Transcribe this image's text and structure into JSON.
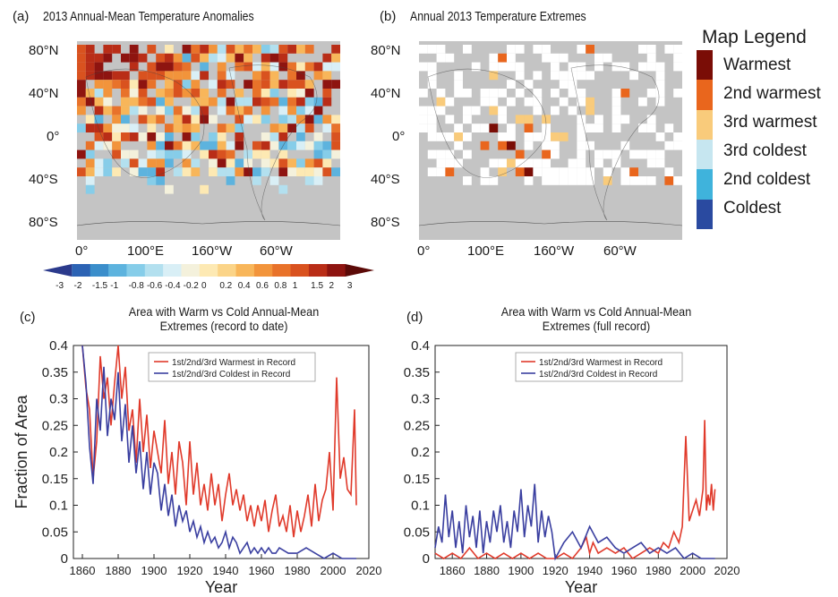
{
  "colors": {
    "land_gray": "#c4c4c4",
    "ocean_gray": "#c4c4c4",
    "warm_line": "#e03a2b",
    "cold_line": "#3a3fa0",
    "scale": [
      "#2b3a8c",
      "#2c63b4",
      "#3b8ecb",
      "#5db3de",
      "#86cde9",
      "#b3e0ef",
      "#d9eff6",
      "#f4f1dc",
      "#fde9b3",
      "#fbd488",
      "#f8b65a",
      "#f2943b",
      "#e8722a",
      "#d9521f",
      "#b92d17",
      "#8e1410",
      "#5c0a08"
    ],
    "legend": [
      "#7a0d06",
      "#e9661d",
      "#f9cb7b",
      "#c6e6f0",
      "#3fb3dc",
      "#2a4aa0"
    ]
  },
  "panel_a": {
    "tag": "(a)",
    "title": "2013 Annual-Mean Temperature Anomalies",
    "lat_labels": [
      "80°N",
      "40°N",
      "0°",
      "40°S",
      "80°S"
    ],
    "lon_labels": [
      "0°",
      "100°E",
      "160°W",
      "60°W"
    ]
  },
  "panel_b": {
    "tag": "(b)",
    "title": "Annual 2013 Temperature Extremes",
    "lat_labels": [
      "80°N",
      "40°N",
      "0°",
      "40°S",
      "80°S"
    ],
    "lon_labels": [
      "0°",
      "100°E",
      "160°W",
      "60°W"
    ]
  },
  "map_legend": {
    "title": "Map Legend",
    "items": [
      "Warmest",
      "2nd warmest",
      "3rd warmest",
      "3rd coldest",
      "2nd coldest",
      "Coldest"
    ]
  },
  "colorbar": {
    "labels": [
      "-3",
      "-2",
      "-1.5",
      "-1",
      "-0.8",
      "-0.6",
      "-0.4",
      "-0.2",
      "0",
      "0.2",
      "0.4",
      "0.6",
      "0.8",
      "1",
      "1.5",
      "2",
      "3"
    ]
  },
  "chart_data": [
    {
      "type": "line",
      "panel": "(c)",
      "title": "Area with Warm vs Cold Annual-Mean Extremes (record to date)",
      "title_lines": [
        "Area with Warm vs Cold Annual-Mean",
        "Extremes (record to date)"
      ],
      "xlabel": "Year",
      "ylabel": "Fraction of Area",
      "xlim": [
        1855,
        2020
      ],
      "ylim": [
        0,
        0.4
      ],
      "xticks": [
        1860,
        1880,
        1900,
        1920,
        1940,
        1960,
        1980,
        2000,
        2020
      ],
      "yticks": [
        0,
        0.05,
        0.1,
        0.15,
        0.2,
        0.25,
        0.3,
        0.35,
        0.4
      ],
      "legend_position": "top-center",
      "series": [
        {
          "name": "1st/2nd/3rd Warmest in Record",
          "x": [
            1860,
            1862,
            1864,
            1866,
            1868,
            1870,
            1872,
            1874,
            1876,
            1878,
            1880,
            1882,
            1884,
            1886,
            1888,
            1890,
            1892,
            1894,
            1896,
            1898,
            1900,
            1902,
            1904,
            1906,
            1908,
            1910,
            1912,
            1914,
            1916,
            1918,
            1920,
            1922,
            1924,
            1926,
            1928,
            1930,
            1932,
            1934,
            1936,
            1938,
            1940,
            1942,
            1944,
            1946,
            1948,
            1950,
            1952,
            1954,
            1956,
            1958,
            1960,
            1962,
            1964,
            1966,
            1968,
            1970,
            1972,
            1974,
            1976,
            1978,
            1980,
            1982,
            1984,
            1986,
            1988,
            1990,
            1992,
            1994,
            1996,
            1998,
            2000,
            2002,
            2004,
            2006,
            2008,
            2010,
            2012,
            2013
          ],
          "y": [
            0.4,
            0.32,
            0.28,
            0.15,
            0.22,
            0.38,
            0.3,
            0.34,
            0.25,
            0.33,
            0.4,
            0.3,
            0.36,
            0.24,
            0.28,
            0.18,
            0.3,
            0.2,
            0.27,
            0.17,
            0.24,
            0.2,
            0.16,
            0.26,
            0.14,
            0.2,
            0.12,
            0.22,
            0.18,
            0.1,
            0.22,
            0.12,
            0.18,
            0.1,
            0.14,
            0.09,
            0.16,
            0.1,
            0.14,
            0.07,
            0.12,
            0.16,
            0.1,
            0.13,
            0.09,
            0.12,
            0.07,
            0.1,
            0.06,
            0.1,
            0.07,
            0.11,
            0.05,
            0.09,
            0.12,
            0.06,
            0.08,
            0.05,
            0.1,
            0.04,
            0.09,
            0.05,
            0.08,
            0.12,
            0.06,
            0.14,
            0.07,
            0.11,
            0.13,
            0.2,
            0.09,
            0.34,
            0.15,
            0.19,
            0.13,
            0.12,
            0.28,
            0.1
          ]
        },
        {
          "name": "1st/2nd/3rd Coldest in Record",
          "x": [
            1860,
            1862,
            1864,
            1866,
            1868,
            1870,
            1872,
            1874,
            1876,
            1878,
            1880,
            1882,
            1884,
            1886,
            1888,
            1890,
            1892,
            1894,
            1896,
            1898,
            1900,
            1902,
            1904,
            1906,
            1908,
            1910,
            1912,
            1914,
            1916,
            1918,
            1920,
            1922,
            1924,
            1926,
            1928,
            1930,
            1932,
            1934,
            1936,
            1938,
            1940,
            1942,
            1944,
            1946,
            1948,
            1950,
            1952,
            1954,
            1956,
            1958,
            1960,
            1962,
            1964,
            1966,
            1968,
            1970,
            1975,
            1980,
            1985,
            1990,
            1995,
            2000,
            2005,
            2010,
            2013
          ],
          "y": [
            0.4,
            0.33,
            0.21,
            0.14,
            0.3,
            0.24,
            0.36,
            0.23,
            0.3,
            0.26,
            0.35,
            0.22,
            0.29,
            0.18,
            0.25,
            0.16,
            0.22,
            0.13,
            0.2,
            0.12,
            0.18,
            0.16,
            0.09,
            0.14,
            0.08,
            0.12,
            0.06,
            0.1,
            0.07,
            0.09,
            0.05,
            0.07,
            0.04,
            0.06,
            0.03,
            0.05,
            0.03,
            0.04,
            0.02,
            0.03,
            0.05,
            0.02,
            0.04,
            0.03,
            0.01,
            0.02,
            0.03,
            0.01,
            0.02,
            0.01,
            0.02,
            0.01,
            0.02,
            0.01,
            0.01,
            0.02,
            0.01,
            0.01,
            0.02,
            0.01,
            0.0,
            0.01,
            0.0,
            0.0,
            0.0
          ]
        }
      ]
    },
    {
      "type": "line",
      "panel": "(d)",
      "title": "Area with Warm vs Cold Annual-Mean Extremes (full record)",
      "title_lines": [
        "Area with Warm vs Cold Annual-Mean",
        "Extremes (full record)"
      ],
      "xlabel": "Year",
      "ylabel": "",
      "xlim": [
        1850,
        2020
      ],
      "ylim": [
        0,
        0.4
      ],
      "xticks": [
        1860,
        1880,
        1900,
        1920,
        1940,
        1960,
        1980,
        2000,
        2020
      ],
      "yticks": [
        0,
        0.05,
        0.1,
        0.15,
        0.2,
        0.25,
        0.3,
        0.35,
        0.4
      ],
      "legend_position": "top-center",
      "series": [
        {
          "name": "1st/2nd/3rd Warmest in Record",
          "x": [
            1850,
            1855,
            1860,
            1865,
            1870,
            1875,
            1880,
            1885,
            1890,
            1895,
            1900,
            1905,
            1910,
            1915,
            1920,
            1925,
            1930,
            1935,
            1938,
            1940,
            1942,
            1945,
            1950,
            1955,
            1960,
            1965,
            1970,
            1975,
            1980,
            1983,
            1986,
            1989,
            1992,
            1994,
            1996,
            1998,
            2000,
            2002,
            2004,
            2006,
            2007,
            2008,
            2009,
            2010,
            2011,
            2012,
            2013
          ],
          "y": [
            0.01,
            0.0,
            0.01,
            0.0,
            0.02,
            0.0,
            0.01,
            0.0,
            0.01,
            0.0,
            0.01,
            0.0,
            0.01,
            0.0,
            0.0,
            0.01,
            0.0,
            0.02,
            0.04,
            0.01,
            0.03,
            0.01,
            0.02,
            0.01,
            0.02,
            0.0,
            0.01,
            0.02,
            0.01,
            0.03,
            0.02,
            0.05,
            0.03,
            0.06,
            0.23,
            0.07,
            0.09,
            0.11,
            0.08,
            0.13,
            0.26,
            0.09,
            0.12,
            0.1,
            0.14,
            0.09,
            0.13
          ]
        },
        {
          "name": "1st/2nd/3rd Coldest in Record",
          "x": [
            1850,
            1852,
            1854,
            1856,
            1858,
            1860,
            1862,
            1864,
            1866,
            1868,
            1870,
            1872,
            1874,
            1876,
            1878,
            1880,
            1882,
            1884,
            1886,
            1888,
            1890,
            1892,
            1894,
            1896,
            1898,
            1900,
            1902,
            1904,
            1906,
            1908,
            1910,
            1912,
            1914,
            1916,
            1918,
            1920,
            1925,
            1930,
            1935,
            1940,
            1945,
            1950,
            1955,
            1960,
            1965,
            1970,
            1975,
            1980,
            1985,
            1990,
            1995,
            2000,
            2005,
            2010,
            2013
          ],
          "y": [
            0.02,
            0.06,
            0.03,
            0.12,
            0.04,
            0.09,
            0.02,
            0.07,
            0.01,
            0.1,
            0.04,
            0.08,
            0.02,
            0.09,
            0.01,
            0.07,
            0.03,
            0.09,
            0.05,
            0.1,
            0.03,
            0.07,
            0.02,
            0.09,
            0.05,
            0.13,
            0.04,
            0.1,
            0.06,
            0.14,
            0.03,
            0.09,
            0.04,
            0.08,
            0.05,
            0.0,
            0.03,
            0.05,
            0.02,
            0.06,
            0.03,
            0.04,
            0.02,
            0.01,
            0.02,
            0.03,
            0.01,
            0.02,
            0.01,
            0.02,
            0.0,
            0.01,
            0.0,
            0.0,
            0.0
          ]
        }
      ]
    }
  ]
}
